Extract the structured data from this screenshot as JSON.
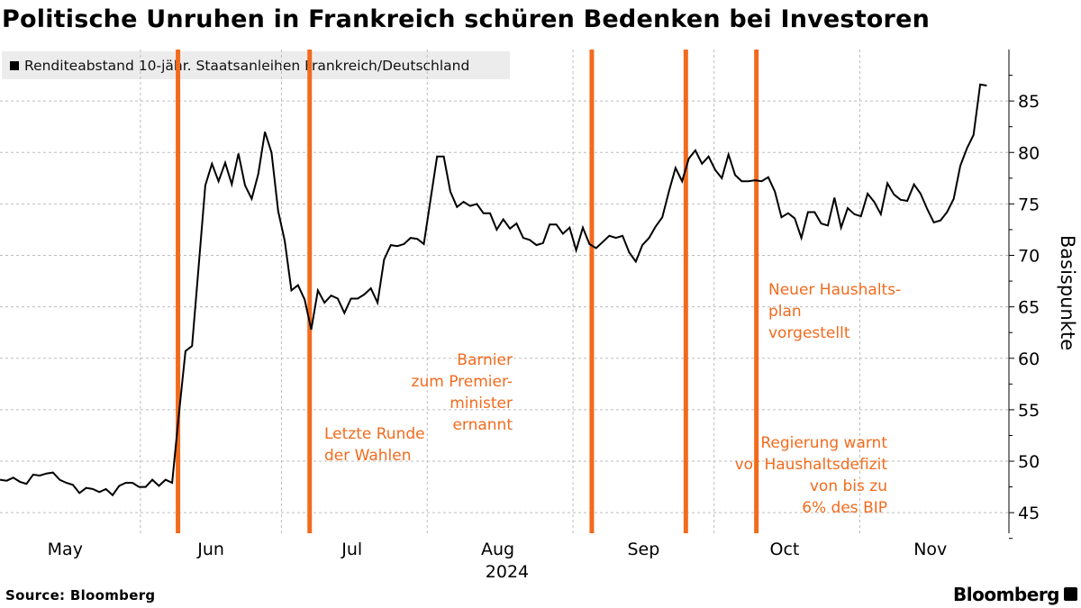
{
  "chart_data": {
    "type": "line",
    "title": "Politische Unruhen in Frankreich schüren Bedenken bei Investoren",
    "legend": [
      "Renditeabstand 10-jähr. Staatsanleihen Frankreich/Deutschland"
    ],
    "legend_placement": "top-left",
    "ylabel": "Basispunkte",
    "xlabel": "2024",
    "ylim": [
      43,
      90
    ],
    "yticks": [
      45,
      50,
      55,
      60,
      65,
      70,
      75,
      80,
      85
    ],
    "xticks": [
      "May",
      "Jun",
      "Jul",
      "Aug",
      "Sep",
      "Oct",
      "Nov"
    ],
    "x_start": "2024-05-01",
    "x_end": "2024-11-28",
    "grid": true,
    "series": [
      {
        "name": "Renditeabstand 10-jähr. Staatsanleihen Frankreich/Deutschland",
        "values": [
          48.2,
          48.1,
          48.4,
          48.0,
          47.8,
          48.7,
          48.6,
          48.8,
          48.9,
          48.2,
          47.9,
          47.7,
          46.9,
          47.4,
          47.3,
          47.0,
          47.3,
          46.7,
          47.6,
          47.9,
          47.9,
          47.5,
          47.5,
          48.2,
          47.6,
          48.2,
          47.9,
          54.5,
          60.7,
          61.2,
          69.0,
          76.8,
          78.9,
          77.2,
          79.0,
          76.9,
          79.9,
          76.8,
          75.5,
          77.9,
          82.0,
          80.0,
          74.3,
          71.4,
          66.6,
          67.1,
          65.7,
          62.8,
          66.6,
          65.4,
          66.1,
          65.8,
          64.4,
          65.8,
          65.8,
          66.2,
          66.8,
          65.4,
          69.6,
          71.0,
          70.9,
          71.1,
          71.7,
          71.6,
          71.1,
          75.4,
          79.6,
          79.6,
          76.2,
          74.7,
          75.2,
          74.8,
          75.0,
          74.1,
          74.1,
          72.5,
          73.5,
          72.6,
          73.1,
          71.7,
          71.5,
          71.0,
          71.2,
          73.0,
          73.0,
          72.1,
          72.7,
          70.5,
          72.7,
          71.1,
          70.7,
          71.3,
          71.9,
          71.7,
          71.9,
          70.3,
          69.4,
          71.0,
          71.7,
          72.8,
          73.7,
          76.2,
          78.5,
          77.2,
          79.4,
          80.2,
          78.9,
          79.6,
          78.3,
          77.5,
          79.8,
          77.8,
          77.2,
          77.2,
          77.3,
          77.2,
          77.6,
          76.2,
          73.7,
          74.1,
          73.6,
          71.7,
          74.2,
          74.2,
          73.1,
          72.9,
          75.6,
          72.7,
          74.6,
          74.0,
          73.8,
          76.0,
          75.2,
          74.0,
          77.0,
          75.9,
          75.4,
          75.3,
          76.9,
          76.0,
          74.5,
          73.2,
          73.4,
          74.2,
          75.5,
          78.7,
          80.4,
          81.7,
          86.6,
          86.5
        ]
      }
    ],
    "events": [
      {
        "date": "2024-06-09",
        "label_lines": []
      },
      {
        "date": "2024-07-07",
        "label_lines": [
          "Letzte Runde",
          "der Wahlen"
        ]
      },
      {
        "date": "2024-09-05",
        "label_lines": [
          "Barnier",
          "zum Premier-",
          "minister",
          "ernannt"
        ]
      },
      {
        "date": "2024-09-25",
        "label_lines": [
          "Regierung warnt",
          "vor Haushaltsdefizit",
          "von bis zu",
          "6% des BIP"
        ]
      },
      {
        "date": "2024-10-10",
        "label_lines": [
          "Neuer Haushalts-",
          "plan",
          "vorgestellt"
        ]
      }
    ],
    "colors": {
      "line": "#000000",
      "event": "#f26b1d",
      "grid": "#bdbdbd",
      "legend_bg": "#ececec"
    }
  },
  "footer": {
    "source": "Source: Bloomberg",
    "brand": "Bloomberg"
  }
}
